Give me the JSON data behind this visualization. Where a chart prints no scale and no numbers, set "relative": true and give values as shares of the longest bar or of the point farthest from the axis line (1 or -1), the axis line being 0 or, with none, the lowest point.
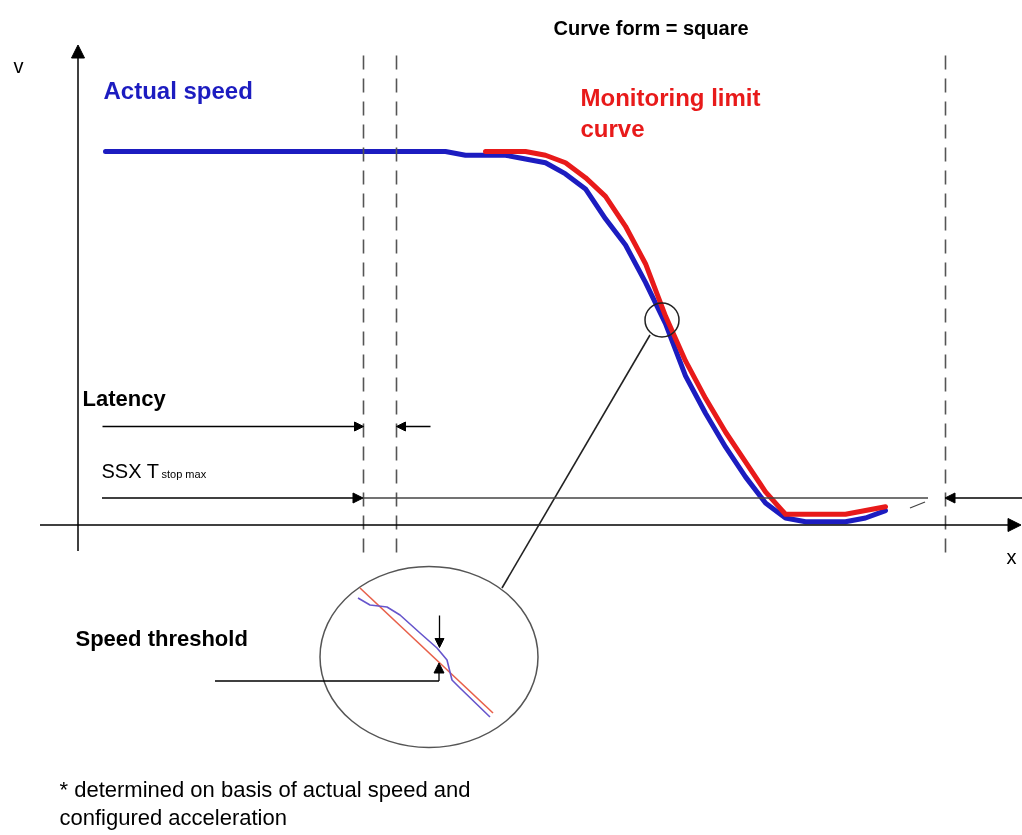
{
  "chart_data": {
    "type": "line",
    "title": "Curve form = square",
    "relative": true,
    "categories": [
      null,
      null,
      null,
      null,
      null,
      null,
      null,
      null,
      null,
      null,
      null,
      null,
      null,
      null,
      null,
      null,
      null,
      null,
      null,
      null,
      null,
      null,
      null,
      null,
      null,
      null,
      null,
      null,
      null,
      null,
      null,
      null,
      null,
      null,
      null,
      null,
      null,
      null,
      null,
      null
    ],
    "series": [
      {
        "name": "Actual speed",
        "color": "#1c1cc0",
        "values": [
          1,
          1,
          1,
          1,
          1,
          1,
          1,
          1,
          1,
          1,
          1,
          1,
          1,
          1,
          1,
          1,
          1,
          1,
          0.99,
          0.99,
          0.99,
          0.98,
          0.97,
          0.94,
          0.9,
          0.82,
          0.75,
          0.65,
          0.54,
          0.4,
          0.3,
          0.21,
          0.13,
          0.06,
          0.02,
          0.01,
          0.01,
          0.01,
          0.02,
          0.04
        ]
      },
      {
        "name": "Monitoring limit curve",
        "color": "#e81a1a",
        "values": [
          null,
          null,
          null,
          null,
          null,
          null,
          null,
          null,
          null,
          null,
          null,
          null,
          null,
          null,
          null,
          null,
          null,
          null,
          null,
          1,
          1,
          1,
          0.99,
          0.97,
          0.93,
          0.88,
          0.8,
          0.7,
          0.56,
          0.44,
          0.34,
          0.25,
          0.17,
          0.09,
          0.03,
          0.03,
          0.03,
          0.03,
          0.04,
          0.05
        ]
      }
    ],
    "annotations": [
      "v",
      "Latency",
      "SSX T$_{stop max}$",
      "x",
      "Speed threshold",
      "* determined on basis of actual speed and configured acceleration"
    ]
  }
}
